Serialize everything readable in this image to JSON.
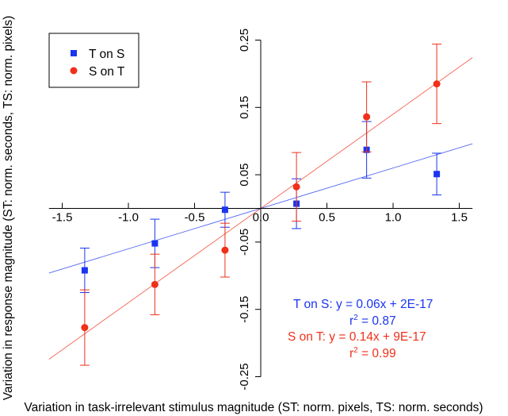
{
  "chart_data": {
    "type": "scatter",
    "title": "",
    "xlabel": "Variation in task-irrelevant stimulus magnitude (ST: norm. pixels, TS: norm. seconds)",
    "ylabel": "Variation in response magnitude (ST: norm. seconds, TS: norm. pixels)",
    "xlim": [
      -1.6,
      1.6
    ],
    "ylim": [
      -0.27,
      0.25
    ],
    "x_ticks": [
      "-1.5",
      "-1.0",
      "-0.5",
      "0.0",
      "0.5",
      "1.0",
      "1.5"
    ],
    "x_tick_values": [
      -1.5,
      -1.0,
      -0.5,
      0.0,
      0.5,
      1.0,
      1.5
    ],
    "y_ticks": [
      "0.25",
      "0.15",
      "0.05",
      "-0.05",
      "-0.15",
      "-0.25"
    ],
    "y_tick_values": [
      0.25,
      0.15,
      0.05,
      -0.05,
      -0.15,
      -0.25
    ],
    "legend_position": "top-left",
    "series": [
      {
        "name": "T on S",
        "marker": "square",
        "color": "#1a35f0",
        "x": [
          -1.33,
          -0.8,
          -0.27,
          0.27,
          0.8,
          1.33
        ],
        "y": [
          -0.092,
          -0.052,
          -0.002,
          0.007,
          0.087,
          0.051
        ],
        "err": [
          0.033,
          0.036,
          0.026,
          0.037,
          0.042,
          0.031
        ],
        "fit": {
          "slope": 0.06,
          "intercept": 0,
          "x_range": [
            -1.6,
            1.6
          ]
        },
        "equation": "T on S: y = 0.06x + 2E-17",
        "r2_label": "r",
        "r2_sup": "2",
        "r2_value": " = 0.87"
      },
      {
        "name": "S on T",
        "marker": "circle",
        "color": "#f0301a",
        "x": [
          -1.33,
          -0.8,
          -0.27,
          0.27,
          0.8,
          1.33
        ],
        "y": [
          -0.177,
          -0.113,
          -0.062,
          0.032,
          0.136,
          0.185
        ],
        "err": [
          0.056,
          0.045,
          0.04,
          0.051,
          0.052,
          0.059
        ],
        "fit": {
          "slope": 0.14,
          "intercept": 0,
          "x_range": [
            -1.6,
            1.6
          ]
        },
        "equation": "S on T: y = 0.14x + 9E-17",
        "r2_label": "r",
        "r2_sup": "2",
        "r2_value": " = 0.99"
      }
    ]
  }
}
